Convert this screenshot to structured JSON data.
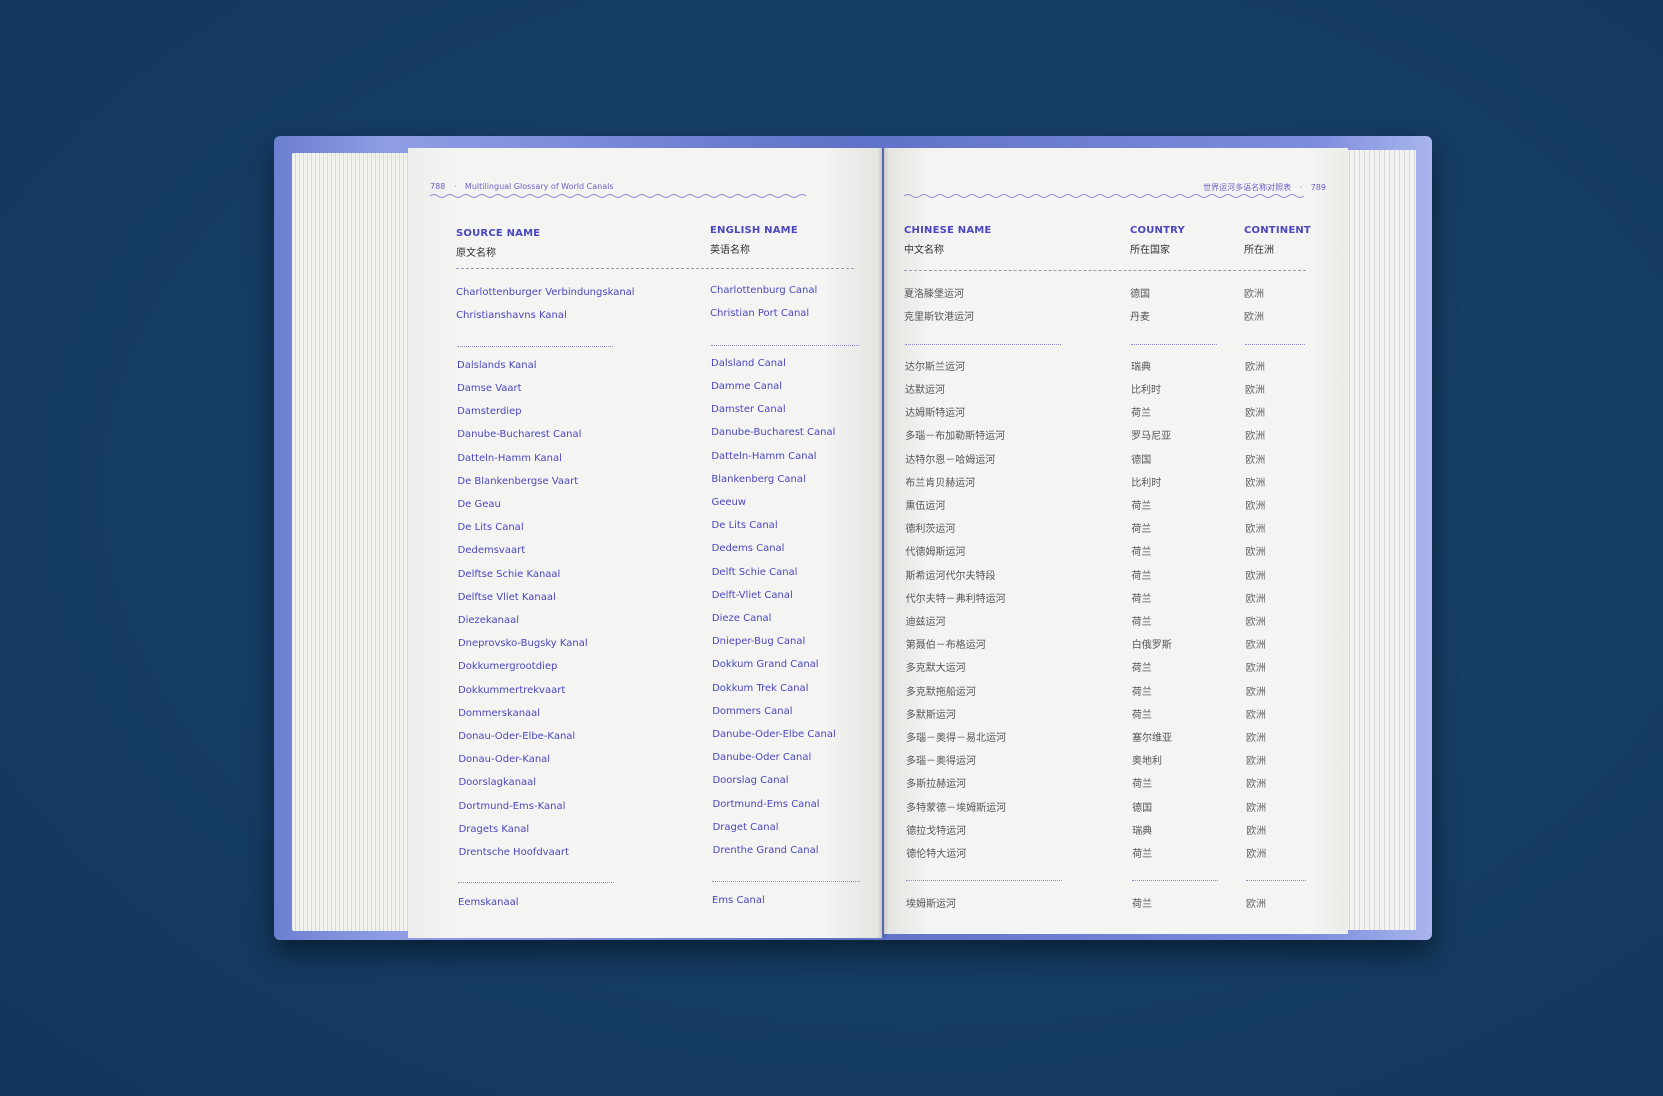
{
  "left_page": {
    "page_number": "788",
    "running_title": "Multilingual Glossary of World Canals",
    "headers": [
      {
        "en": "SOURCE NAME",
        "cn": "原文名称"
      },
      {
        "en": "ENGLISH NAME",
        "cn": "英语名称"
      }
    ],
    "groups": [
      {
        "rows": [
          {
            "source": "Charlottenburger Verbindungskanal",
            "english": "Charlottenburg Canal"
          },
          {
            "source": "Christianshavns Kanal",
            "english": "Christian Port Canal"
          }
        ]
      },
      {
        "rows": [
          {
            "source": "Dalslands Kanal",
            "english": "Dalsland Canal"
          },
          {
            "source": "Damse Vaart",
            "english": "Damme Canal"
          },
          {
            "source": "Damsterdiep",
            "english": "Damster Canal"
          },
          {
            "source": "Danube-Bucharest Canal",
            "english": "Danube-Bucharest Canal"
          },
          {
            "source": "Datteln-Hamm Kanal",
            "english": "Datteln-Hamm Canal"
          },
          {
            "source": "De Blankenbergse Vaart",
            "english": "Blankenberg Canal"
          },
          {
            "source": "De Geau",
            "english": "Geeuw"
          },
          {
            "source": "De Lits Canal",
            "english": "De Lits Canal"
          },
          {
            "source": "Dedemsvaart",
            "english": "Dedems Canal"
          },
          {
            "source": "Delftse Schie Kanaal",
            "english": "Delft Schie Canal"
          },
          {
            "source": "Delftse Vliet Kanaal",
            "english": "Delft-Vliet Canal"
          },
          {
            "source": "Diezekanaal",
            "english": "Dieze Canal"
          },
          {
            "source": "Dneprovsko-Bugsky Kanal",
            "english": "Dnieper-Bug Canal"
          },
          {
            "source": "Dokkumergrootdiep",
            "english": "Dokkum Grand Canal"
          },
          {
            "source": "Dokkummertrekvaart",
            "english": "Dokkum Trek Canal"
          },
          {
            "source": "Dommerskanaal",
            "english": "Dommers Canal"
          },
          {
            "source": "Donau-Oder-Elbe-Kanal",
            "english": "Danube-Oder-Elbe Canal"
          },
          {
            "source": "Donau-Oder-Kanal",
            "english": "Danube-Oder Canal"
          },
          {
            "source": "Doorslagkanaal",
            "english": "Doorslag Canal"
          },
          {
            "source": "Dortmund-Ems-Kanal",
            "english": "Dortmund-Ems Canal"
          },
          {
            "source": "Dragets Kanal",
            "english": "Draget Canal"
          },
          {
            "source": "Drentsche Hoofdvaart",
            "english": "Drenthe Grand Canal"
          }
        ]
      },
      {
        "rows": [
          {
            "source": "Eemskanaal",
            "english": "Ems Canal"
          }
        ]
      }
    ]
  },
  "right_page": {
    "page_number": "789",
    "running_title": "世界运河多语名称对照表",
    "headers": [
      {
        "en": "CHINESE NAME",
        "cn": "中文名称"
      },
      {
        "en": "COUNTRY",
        "cn": "所在国家"
      },
      {
        "en": "CONTINENT",
        "cn": "所在洲"
      }
    ],
    "groups": [
      {
        "rows": [
          {
            "chinese": "夏洛滕堡运河",
            "country": "德国",
            "continent": "欧洲"
          },
          {
            "chinese": "克里斯钦港运河",
            "country": "丹麦",
            "continent": "欧洲"
          }
        ]
      },
      {
        "rows": [
          {
            "chinese": "达尔斯兰运河",
            "country": "瑞典",
            "continent": "欧洲"
          },
          {
            "chinese": "达默运河",
            "country": "比利时",
            "continent": "欧洲"
          },
          {
            "chinese": "达姆斯特运河",
            "country": "荷兰",
            "continent": "欧洲"
          },
          {
            "chinese": "多瑙－布加勒斯特运河",
            "country": "罗马尼亚",
            "continent": "欧洲"
          },
          {
            "chinese": "达特尔恩－哈姆运河",
            "country": "德国",
            "continent": "欧洲"
          },
          {
            "chinese": "布兰肯贝赫运河",
            "country": "比利时",
            "continent": "欧洲"
          },
          {
            "chinese": "熏伍运河",
            "country": "荷兰",
            "continent": "欧洲"
          },
          {
            "chinese": "德利茨运河",
            "country": "荷兰",
            "continent": "欧洲"
          },
          {
            "chinese": "代德姆斯运河",
            "country": "荷兰",
            "continent": "欧洲"
          },
          {
            "chinese": "斯希运河代尔夫特段",
            "country": "荷兰",
            "continent": "欧洲"
          },
          {
            "chinese": "代尔夫特－弗利特运河",
            "country": "荷兰",
            "continent": "欧洲"
          },
          {
            "chinese": "迪兹运河",
            "country": "荷兰",
            "continent": "欧洲"
          },
          {
            "chinese": "第聂伯－布格运河",
            "country": "白俄罗斯",
            "continent": "欧洲"
          },
          {
            "chinese": "多克默大运河",
            "country": "荷兰",
            "continent": "欧洲"
          },
          {
            "chinese": "多克默拖船运河",
            "country": "荷兰",
            "continent": "欧洲"
          },
          {
            "chinese": "多默斯运河",
            "country": "荷兰",
            "continent": "欧洲"
          },
          {
            "chinese": "多瑙－奥得－易北运河",
            "country": "塞尔维亚",
            "continent": "欧洲"
          },
          {
            "chinese": "多瑙－奥得运河",
            "country": "奥地利",
            "continent": "欧洲"
          },
          {
            "chinese": "多斯拉赫运河",
            "country": "荷兰",
            "continent": "欧洲"
          },
          {
            "chinese": "多特蒙德－埃姆斯运河",
            "country": "德国",
            "continent": "欧洲"
          },
          {
            "chinese": "德拉戈特运河",
            "country": "瑞典",
            "continent": "欧洲"
          },
          {
            "chinese": "德伦特大运河",
            "country": "荷兰",
            "continent": "欧洲"
          }
        ]
      },
      {
        "rows": [
          {
            "chinese": "埃姆斯运河",
            "country": "荷兰",
            "continent": "欧洲"
          }
        ]
      }
    ]
  },
  "colors": {
    "background": "#143a60",
    "cover": "#6d7fd0",
    "paper": "#f3f3f1",
    "accent_text": "#4a47c0"
  }
}
